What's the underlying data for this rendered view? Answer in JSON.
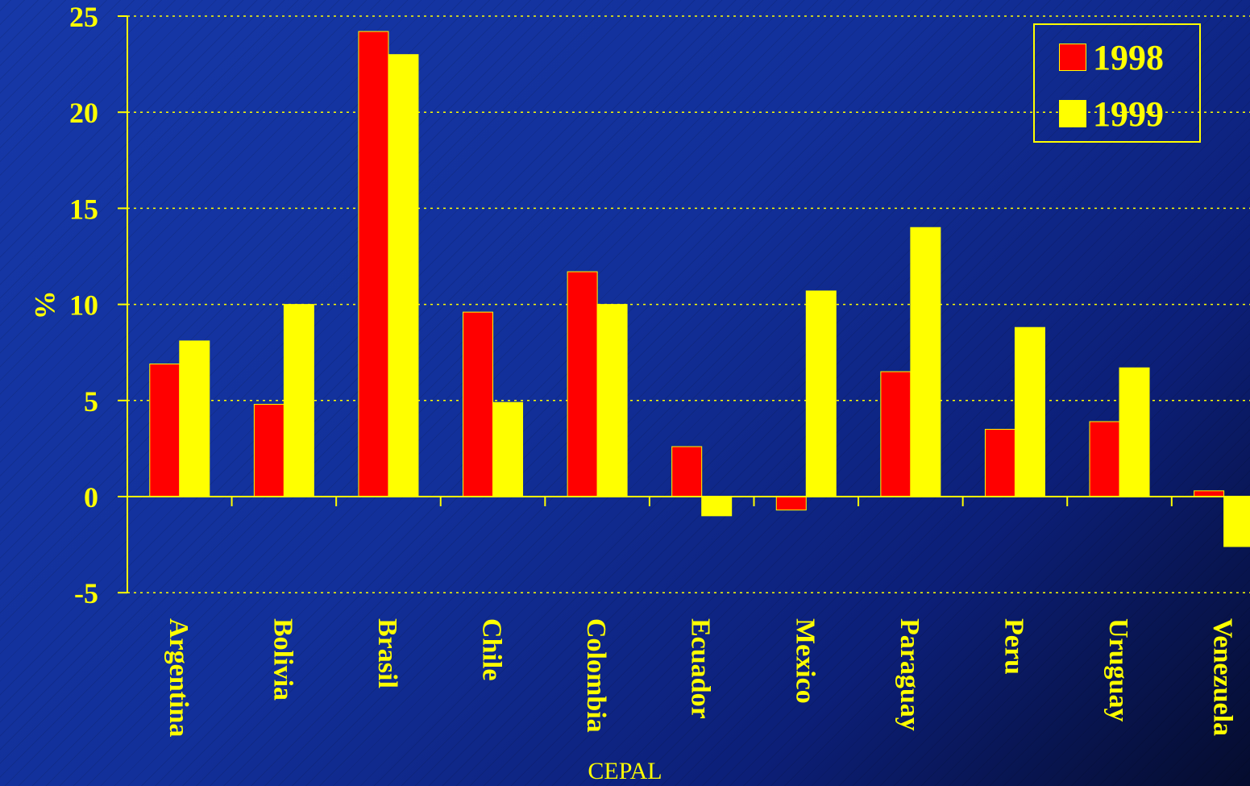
{
  "chart_data": {
    "type": "bar",
    "categories": [
      "Argentina",
      "Bolivia",
      "Brasil",
      "Chile",
      "Colombia",
      "Ecuador",
      "Mexico",
      "Paraguay",
      "Peru",
      "Uruguay",
      "Venezuela"
    ],
    "series": [
      {
        "name": "1998",
        "color": "#ff0000",
        "values": [
          6.9,
          4.8,
          24.2,
          9.6,
          11.7,
          2.6,
          -0.7,
          6.5,
          3.5,
          3.9,
          0.3
        ]
      },
      {
        "name": "1999",
        "color": "#ffff00",
        "values": [
          8.1,
          10.0,
          23.0,
          4.9,
          10.0,
          -1.0,
          10.7,
          14.0,
          8.8,
          6.7,
          -2.6
        ]
      }
    ],
    "ylabel": "%",
    "ylim": [
      -5,
      25
    ],
    "yticks": [
      -5,
      0,
      5,
      10,
      15,
      20,
      25
    ],
    "grid": true,
    "legend_position": "top-right",
    "source": "CEPAL"
  }
}
